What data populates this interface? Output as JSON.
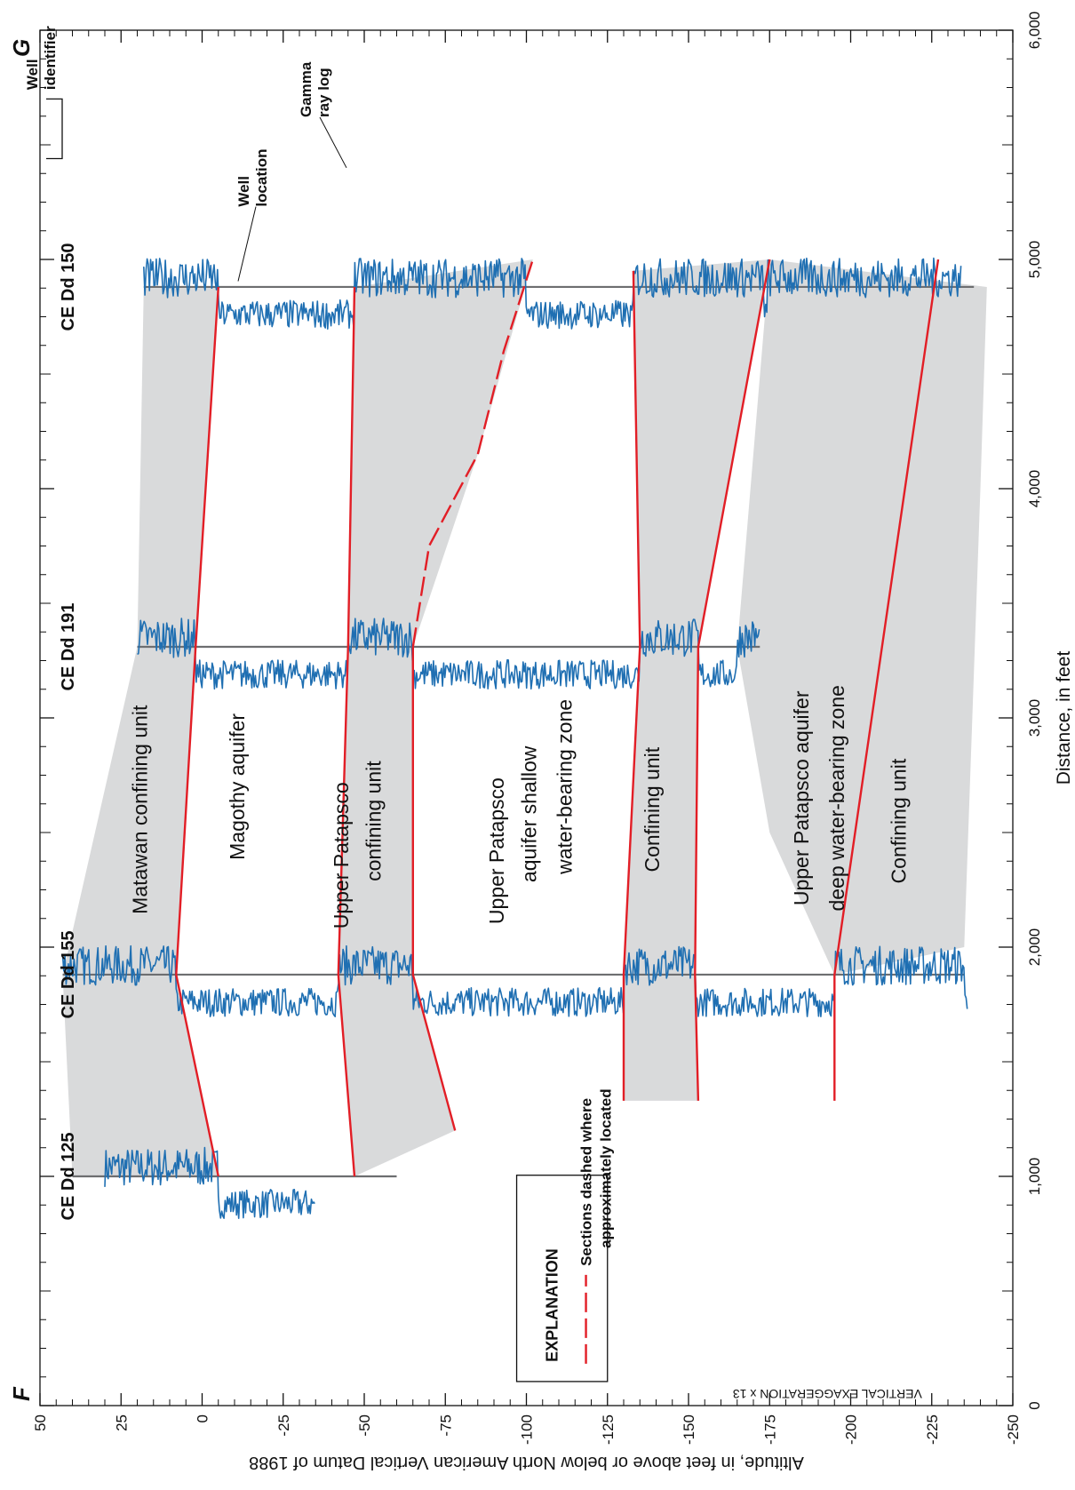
{
  "chart_data": {
    "type": "cross-section",
    "section_start_label": "F",
    "section_end_label": "G",
    "xlabel": "Distance, in feet",
    "ylabel": "Altitude, in feet above or below North American Vertical Datum of 1988",
    "xlim": [
      0,
      6000
    ],
    "ylim": [
      -250,
      50
    ],
    "x_ticks": [
      0,
      1000,
      2000,
      3000,
      4000,
      5000,
      6000
    ],
    "x_tick_labels": [
      "0",
      "1,000",
      "2,000",
      "3,000",
      "4,000",
      "5,000",
      "6,000"
    ],
    "y_ticks": [
      50,
      25,
      0,
      -25,
      -50,
      -75,
      -100,
      -125,
      -150,
      -175,
      -200,
      -225,
      -250
    ],
    "y_tick_labels": [
      "50",
      "25",
      "0",
      "-25",
      "-50",
      "-75",
      "-100",
      "-125",
      "-150",
      "-175",
      "-200",
      "-225",
      "-250"
    ],
    "vertical_exaggeration": "VERTICAL EXAGGERATION x 13",
    "wells": [
      {
        "id": "CE Dd 125",
        "x": 1000,
        "top": 40,
        "bottom": -60
      },
      {
        "id": "CE Dd 155",
        "x": 1880,
        "top": 43,
        "bottom": -235
      },
      {
        "id": "CE Dd 191",
        "x": 3310,
        "top": 20,
        "bottom": -172
      },
      {
        "id": "CE Dd 150",
        "x": 4880,
        "top": 18,
        "bottom": -238
      }
    ],
    "gamma_logs": [
      {
        "well": "CE Dd 125",
        "top": 30,
        "bottom": -35
      },
      {
        "well": "CE Dd 155",
        "top": 43,
        "bottom": -236
      },
      {
        "well": "CE Dd 191",
        "top": 20,
        "bottom": -172
      },
      {
        "well": "CE Dd 150",
        "top": 18,
        "bottom": -234
      }
    ],
    "shaded_units": [
      {
        "name": "Matawan confining unit",
        "top": [
          [
            1000,
            40
          ],
          [
            1880,
            43
          ],
          [
            3310,
            20
          ],
          [
            4880,
            18
          ]
        ],
        "bottom": [
          [
            1000,
            -5
          ],
          [
            1880,
            8
          ],
          [
            3310,
            2
          ],
          [
            4880,
            -5
          ]
        ]
      },
      {
        "name": "Upper Patapsco confining unit",
        "top": [
          [
            1000,
            -47
          ],
          [
            1880,
            -42
          ],
          [
            3310,
            -45
          ],
          [
            4880,
            -47
          ]
        ],
        "bottom": [
          [
            1200,
            -78
          ],
          [
            1880,
            -65
          ],
          [
            3310,
            -65
          ],
          [
            4150,
            -85
          ],
          [
            5000,
            -102
          ]
        ]
      },
      {
        "name": "Confining unit",
        "top": [
          [
            1330,
            -130
          ],
          [
            1880,
            -130
          ],
          [
            3310,
            -135
          ],
          [
            4950,
            -133
          ]
        ],
        "bottom": [
          [
            1330,
            -153
          ],
          [
            1880,
            -152
          ],
          [
            3310,
            -153
          ],
          [
            5000,
            -175
          ]
        ]
      },
      {
        "name": "Confining unit (lower)",
        "top": [
          [
            1880,
            -195
          ],
          [
            2500,
            -175
          ],
          [
            3310,
            -165
          ],
          [
            5000,
            -175
          ]
        ],
        "bottom": [
          [
            2000,
            -235
          ],
          [
            4000,
            -240
          ],
          [
            4880,
            -242
          ]
        ]
      }
    ],
    "contacts": [
      {
        "points": [
          [
            1000,
            -5
          ],
          [
            1880,
            8
          ],
          [
            3310,
            2
          ],
          [
            4880,
            -5
          ]
        ],
        "dashed": false
      },
      {
        "points": [
          [
            1000,
            -47
          ],
          [
            1880,
            -42
          ],
          [
            3310,
            -45
          ],
          [
            4880,
            -47
          ]
        ],
        "dashed": false
      },
      {
        "points": [
          [
            1200,
            -78
          ],
          [
            1880,
            -65
          ],
          [
            3310,
            -65
          ]
        ],
        "dashed": false
      },
      {
        "points": [
          [
            3310,
            -65
          ],
          [
            3750,
            -70
          ],
          [
            4150,
            -85
          ],
          [
            4600,
            -93
          ],
          [
            5000,
            -102
          ]
        ],
        "dashed": true
      },
      {
        "points": [
          [
            1330,
            -130
          ],
          [
            1880,
            -130
          ],
          [
            3310,
            -135
          ],
          [
            4950,
            -133
          ]
        ],
        "dashed": false
      },
      {
        "points": [
          [
            1330,
            -153
          ],
          [
            1880,
            -152
          ],
          [
            3310,
            -153
          ],
          [
            5000,
            -175
          ]
        ],
        "dashed": false
      },
      {
        "points": [
          [
            1330,
            -195
          ],
          [
            1880,
            -195
          ],
          [
            5000,
            -227
          ]
        ],
        "dashed": false
      }
    ],
    "unit_labels": [
      {
        "text": "Matawan confining unit",
        "x": 2600,
        "y": 17,
        "rotated": true
      },
      {
        "text": "Magothy aquifer",
        "x": 2700,
        "y": -13,
        "rotated": true
      },
      {
        "text": "Upper Patapsco",
        "x": 2400,
        "y": -45,
        "rotated": true
      },
      {
        "text": "confining unit",
        "x": 2550,
        "y": -55,
        "rotated": true
      },
      {
        "text": "Upper Patapsco",
        "x": 2420,
        "y": -93,
        "rotated": true
      },
      {
        "text": "aquifer shallow",
        "x": 2580,
        "y": -103,
        "rotated": true
      },
      {
        "text": "water-bearing zone",
        "x": 2700,
        "y": -114,
        "rotated": true
      },
      {
        "text": "Confining unit",
        "x": 2600,
        "y": -141,
        "rotated": true
      },
      {
        "text": "Upper Patapsco aquifer",
        "x": 2650,
        "y": -187,
        "rotated": true
      },
      {
        "text": "deep water-bearing zone",
        "x": 2650,
        "y": -198,
        "rotated": true
      },
      {
        "text": "Confining unit",
        "x": 2550,
        "y": -217,
        "rotated": true
      }
    ],
    "key": {
      "well_identifier": "Well identifier",
      "well_location": "Well location",
      "gamma": "Gamma ray log",
      "well_id_lines": [
        "Well",
        "identifier"
      ],
      "well_loc_lines": [
        "Well",
        "location"
      ],
      "gamma_lines": [
        "Gamma",
        "ray log"
      ]
    },
    "explanation": {
      "title": "EXPLANATION",
      "entry_lines": [
        "Sections dashed where",
        "approximately located"
      ]
    }
  },
  "colors": {
    "shading": "#d9dadb",
    "contact": "#e21e26",
    "gamma": "#1f6fb2",
    "well": "#6d6e70",
    "text": "#111111"
  }
}
